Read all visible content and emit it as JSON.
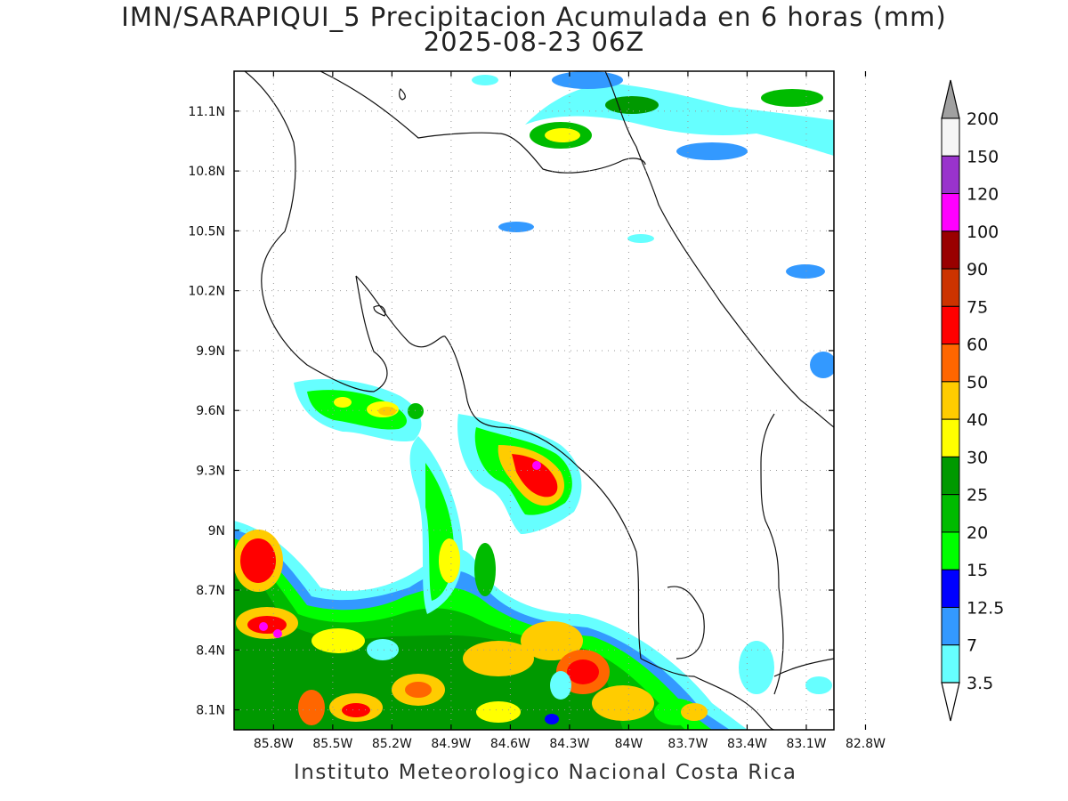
{
  "title": "IMN/SARAPIQUI_5 Precipitacion Acumulada en 6 horas (mm)",
  "subtitle": "2025-08-23 06Z",
  "footer": "Instituto Meteorologico Nacional Costa Rica",
  "map": {
    "lon_range": [
      -86.0,
      -82.96
    ],
    "lat_range": [
      8.0,
      11.3
    ],
    "lon_ticks": [
      "85.8W",
      "85.5W",
      "85.2W",
      "84.9W",
      "84.6W",
      "84.3W",
      "84W",
      "83.7W",
      "83.4W",
      "83.1W",
      "82.8W"
    ],
    "lon_tick_values": [
      -85.8,
      -85.5,
      -85.2,
      -84.9,
      -84.6,
      -84.3,
      -84.0,
      -83.7,
      -83.4,
      -83.1,
      -82.8
    ],
    "lat_ticks": [
      "11.1N",
      "10.8N",
      "10.5N",
      "10.2N",
      "9.9N",
      "9.6N",
      "9.3N",
      "9N",
      "8.7N",
      "8.4N",
      "8.1N"
    ],
    "lat_tick_values": [
      11.1,
      10.8,
      10.5,
      10.2,
      9.9,
      9.6,
      9.3,
      9.0,
      8.7,
      8.4,
      8.1
    ],
    "grid": true
  },
  "colorbar": {
    "labels": [
      "200",
      "150",
      "120",
      "100",
      "90",
      "75",
      "60",
      "50",
      "40",
      "30",
      "25",
      "20",
      "15",
      "12.5",
      "7",
      "3.5"
    ],
    "colors": [
      "#f5f5f5",
      "#9933cc",
      "#ff00ff",
      "#990000",
      "#cc3300",
      "#ff0000",
      "#ff6600",
      "#ffcc00",
      "#ffff00",
      "#009900",
      "#00bb00",
      "#00ff00",
      "#0000ff",
      "#3399ff",
      "#66ffff"
    ],
    "over_color": "#a0a0a0",
    "under_color": "#ffffff"
  }
}
